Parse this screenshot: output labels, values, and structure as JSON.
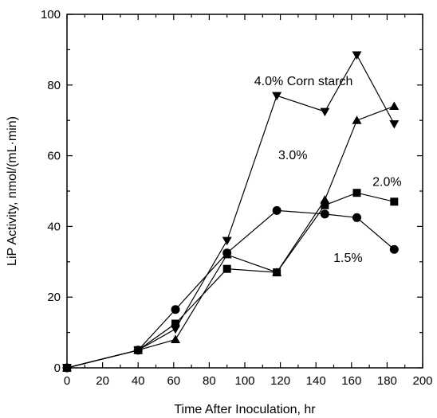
{
  "chart_data": {
    "type": "line",
    "xlabel": "Time After Inoculation, hr",
    "ylabel": "LiP Activity, nmol/(mL·min)",
    "xlim": [
      0,
      200
    ],
    "ylim": [
      0,
      100
    ],
    "x_ticks": [
      "0",
      "20",
      "40",
      "60",
      "80",
      "100",
      "120",
      "140",
      "160",
      "180",
      "200"
    ],
    "y_ticks": [
      "0",
      "20",
      "40",
      "60",
      "80",
      "100"
    ],
    "grid": false,
    "series": [
      {
        "name": "1.5%",
        "marker": "circle",
        "color": "#000000",
        "points": [
          [
            0,
            0
          ],
          [
            40,
            5
          ],
          [
            61,
            16.5
          ],
          [
            90,
            32.5
          ],
          [
            118,
            44.5
          ],
          [
            145,
            43.5
          ],
          [
            163,
            42.5
          ],
          [
            184,
            33.5
          ]
        ]
      },
      {
        "name": "2.0%",
        "marker": "square",
        "color": "#000000",
        "points": [
          [
            0,
            0
          ],
          [
            40,
            5
          ],
          [
            61,
            12.5
          ],
          [
            90,
            28
          ],
          [
            118,
            27
          ],
          [
            145,
            46
          ],
          [
            163,
            49.5
          ],
          [
            184,
            47
          ]
        ]
      },
      {
        "name": "3.0%",
        "marker": "triangle-up",
        "color": "#000000",
        "points": [
          [
            0,
            0
          ],
          [
            40,
            5
          ],
          [
            61,
            8
          ],
          [
            90,
            32
          ],
          [
            118,
            27
          ],
          [
            145,
            47.5
          ],
          [
            163,
            70
          ],
          [
            184,
            74
          ]
        ]
      },
      {
        "name": "4.0% Corn starch",
        "marker": "triangle-down",
        "color": "#000000",
        "points": [
          [
            0,
            0
          ],
          [
            40,
            5
          ],
          [
            61,
            11
          ],
          [
            90,
            36
          ],
          [
            118,
            77
          ],
          [
            145,
            72.5
          ],
          [
            163,
            88.5
          ],
          [
            184,
            69
          ]
        ]
      }
    ],
    "annotations": [
      {
        "text": "4.0% Corn starch",
        "x": 133,
        "y": 80
      },
      {
        "text": "3.0%",
        "x": 127,
        "y": 59
      },
      {
        "text": "2.0%",
        "x": 180,
        "y": 51.5
      },
      {
        "text": "1.5%",
        "x": 158,
        "y": 30
      }
    ]
  }
}
